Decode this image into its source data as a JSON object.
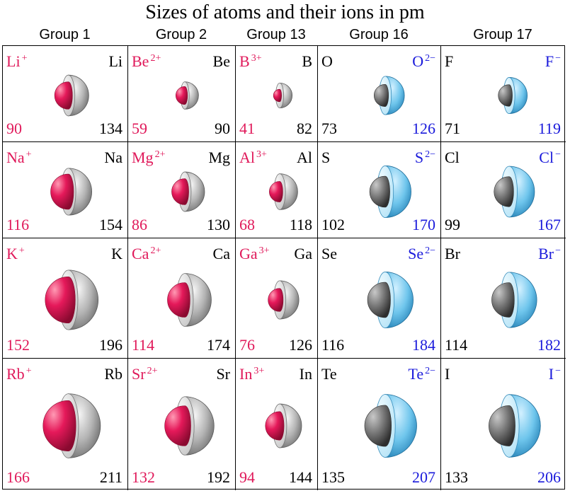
{
  "title": "Sizes of atoms and their ions in pm",
  "groups": [
    "Group 1",
    "Group 2",
    "Group 13",
    "Group 16",
    "Group 17"
  ],
  "colors": {
    "cation": "#e0195a",
    "anion": "#1a1adb",
    "atom": "#000000"
  },
  "cells": [
    [
      {
        "ion_symbol": "Li",
        "ion_charge": "+",
        "atom_symbol": "Li",
        "ion_radius": "90",
        "atom_radius": "134",
        "ion_type": "cation"
      },
      {
        "ion_symbol": "Be",
        "ion_charge": "2+",
        "atom_symbol": "Be",
        "ion_radius": "59",
        "atom_radius": "90",
        "ion_type": "cation"
      },
      {
        "ion_symbol": "B",
        "ion_charge": "3+",
        "atom_symbol": "B",
        "ion_radius": "41",
        "atom_radius": "82",
        "ion_type": "cation"
      },
      {
        "ion_symbol": "O",
        "ion_charge": "2−",
        "atom_symbol": "O",
        "ion_radius": "126",
        "atom_radius": "73",
        "ion_type": "anion"
      },
      {
        "ion_symbol": "F",
        "ion_charge": "−",
        "atom_symbol": "F",
        "ion_radius": "119",
        "atom_radius": "71",
        "ion_type": "anion"
      }
    ],
    [
      {
        "ion_symbol": "Na",
        "ion_charge": "+",
        "atom_symbol": "Na",
        "ion_radius": "116",
        "atom_radius": "154",
        "ion_type": "cation"
      },
      {
        "ion_symbol": "Mg",
        "ion_charge": "2+",
        "atom_symbol": "Mg",
        "ion_radius": "86",
        "atom_radius": "130",
        "ion_type": "cation"
      },
      {
        "ion_symbol": "Al",
        "ion_charge": "3+",
        "atom_symbol": "Al",
        "ion_radius": "68",
        "atom_radius": "118",
        "ion_type": "cation"
      },
      {
        "ion_symbol": "S",
        "ion_charge": "2−",
        "atom_symbol": "S",
        "ion_radius": "170",
        "atom_radius": "102",
        "ion_type": "anion"
      },
      {
        "ion_symbol": "Cl",
        "ion_charge": "−",
        "atom_symbol": "Cl",
        "ion_radius": "167",
        "atom_radius": "99",
        "ion_type": "anion"
      }
    ],
    [
      {
        "ion_symbol": "K",
        "ion_charge": "+",
        "atom_symbol": "K",
        "ion_radius": "152",
        "atom_radius": "196",
        "ion_type": "cation"
      },
      {
        "ion_symbol": "Ca",
        "ion_charge": "2+",
        "atom_symbol": "Ca",
        "ion_radius": "114",
        "atom_radius": "174",
        "ion_type": "cation"
      },
      {
        "ion_symbol": "Ga",
        "ion_charge": "3+",
        "atom_symbol": "Ga",
        "ion_radius": "76",
        "atom_radius": "126",
        "ion_type": "cation"
      },
      {
        "ion_symbol": "Se",
        "ion_charge": "2−",
        "atom_symbol": "Se",
        "ion_radius": "184",
        "atom_radius": "116",
        "ion_type": "anion"
      },
      {
        "ion_symbol": "Br",
        "ion_charge": "−",
        "atom_symbol": "Br",
        "ion_radius": "182",
        "atom_radius": "114",
        "ion_type": "anion"
      }
    ],
    [
      {
        "ion_symbol": "Rb",
        "ion_charge": "+",
        "atom_symbol": "Rb",
        "ion_radius": "166",
        "atom_radius": "211",
        "ion_type": "cation"
      },
      {
        "ion_symbol": "Sr",
        "ion_charge": "2+",
        "atom_symbol": "Sr",
        "ion_radius": "132",
        "atom_radius": "192",
        "ion_type": "cation"
      },
      {
        "ion_symbol": "In",
        "ion_charge": "3+",
        "atom_symbol": "In",
        "ion_radius": "94",
        "atom_radius": "144",
        "ion_type": "cation"
      },
      {
        "ion_symbol": "Te",
        "ion_charge": "2−",
        "atom_symbol": "Te",
        "ion_radius": "207",
        "atom_radius": "135",
        "ion_type": "anion"
      },
      {
        "ion_symbol": "I",
        "ion_charge": "−",
        "atom_symbol": "I",
        "ion_radius": "206",
        "atom_radius": "133",
        "ion_type": "anion"
      }
    ]
  ]
}
